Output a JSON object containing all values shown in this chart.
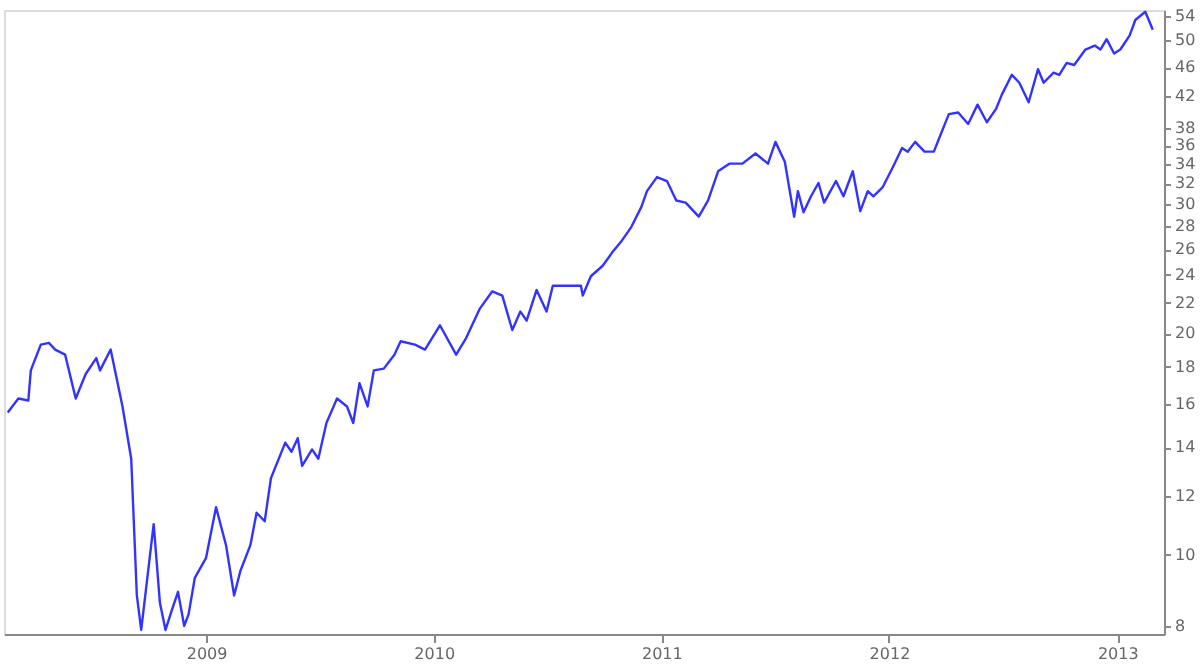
{
  "chart_data": {
    "type": "line",
    "log": "y",
    "grid": false,
    "marker": "none",
    "line_style": "solid",
    "xlim": [
      "2008-02-12",
      "2013-03-17"
    ],
    "xticks": [
      "2009",
      "2010",
      "2011",
      "2012",
      "2013"
    ],
    "ylim": [
      7.8,
      55
    ],
    "yticks": [
      8,
      10,
      12,
      14,
      16,
      18,
      20,
      22,
      24,
      26,
      28,
      30,
      32,
      34,
      36,
      38,
      42,
      46,
      50,
      54
    ],
    "series": [
      {
        "color": "#3333ff",
        "x": [
          "2008-02-18",
          "2008-03-06",
          "2008-03-22",
          "2008-03-26",
          "2008-04-11",
          "2008-04-24",
          "2008-05-04",
          "2008-05-20",
          "2008-06-06",
          "2008-06-22",
          "2008-07-09",
          "2008-07-15",
          "2008-08-01",
          "2008-08-11",
          "2008-08-20",
          "2008-09-03",
          "2008-09-12",
          "2008-09-19",
          "2008-09-22",
          "2008-10-05",
          "2008-10-09",
          "2008-10-19",
          "2008-10-28",
          "2008-11-07",
          "2008-11-17",
          "2008-11-27",
          "2008-12-04",
          "2008-12-14",
          "2009-01-01",
          "2009-01-17",
          "2009-02-02",
          "2009-02-15",
          "2009-02-25",
          "2009-03-13",
          "2009-03-23",
          "2009-04-05",
          "2009-04-15",
          "2009-05-08",
          "2009-05-18",
          "2009-05-28",
          "2009-06-04",
          "2009-06-20",
          "2009-06-30",
          "2009-07-13",
          "2009-07-30",
          "2009-08-15",
          "2009-08-25",
          "2009-09-04",
          "2009-09-17",
          "2009-09-27",
          "2009-10-13",
          "2009-10-30",
          "2009-11-09",
          "2009-12-02",
          "2009-12-18",
          "2010-01-11",
          "2010-02-06",
          "2010-02-22",
          "2010-03-16",
          "2010-04-05",
          "2010-04-21",
          "2010-05-07",
          "2010-05-20",
          "2010-05-30",
          "2010-06-15",
          "2010-07-01",
          "2010-07-11",
          "2010-08-09",
          "2010-08-25",
          "2010-08-28",
          "2010-09-10",
          "2010-09-29",
          "2010-10-15",
          "2010-10-28",
          "2010-11-14",
          "2010-11-30",
          "2010-12-09",
          "2010-12-25",
          "2011-01-10",
          "2011-01-25",
          "2011-02-09",
          "2011-03-02",
          "2011-03-17",
          "2011-04-02",
          "2011-04-20",
          "2011-05-11",
          "2011-06-01",
          "2011-06-21",
          "2011-07-03",
          "2011-07-18",
          "2011-08-02",
          "2011-08-08",
          "2011-08-17",
          "2011-08-29",
          "2011-09-10",
          "2011-09-19",
          "2011-10-08",
          "2011-10-20",
          "2011-11-04",
          "2011-11-16",
          "2011-11-28",
          "2011-12-07",
          "2011-12-22",
          "2012-01-07",
          "2012-01-22",
          "2012-01-31",
          "2012-02-12",
          "2012-02-27",
          "2012-03-13",
          "2012-03-22",
          "2012-04-06",
          "2012-04-21",
          "2012-05-07",
          "2012-05-22",
          "2012-06-06",
          "2012-06-21",
          "2012-06-30",
          "2012-07-16",
          "2012-07-28",
          "2012-08-12",
          "2012-08-27",
          "2012-09-05",
          "2012-09-21",
          "2012-09-30",
          "2012-10-12",
          "2012-10-24",
          "2012-11-11",
          "2012-11-26",
          "2012-12-05",
          "2012-12-15",
          "2012-12-27",
          "2013-01-06",
          "2013-01-21",
          "2013-01-30",
          "2013-02-15",
          "2013-02-27"
        ],
        "values": [
          15.6,
          16.3,
          16.2,
          17.8,
          19.3,
          19.4,
          19.0,
          18.7,
          16.3,
          17.6,
          18.5,
          17.8,
          19.0,
          17.3,
          15.9,
          13.5,
          8.8,
          7.9,
          8.3,
          10.3,
          11.0,
          8.6,
          7.9,
          8.4,
          8.9,
          8.0,
          8.3,
          9.3,
          9.9,
          11.6,
          10.3,
          8.8,
          9.5,
          10.3,
          11.4,
          11.1,
          12.7,
          14.2,
          13.8,
          14.4,
          13.2,
          13.9,
          13.5,
          15.1,
          16.3,
          15.9,
          15.1,
          17.1,
          15.9,
          17.8,
          17.9,
          18.7,
          19.5,
          19.3,
          19.0,
          20.5,
          18.7,
          19.7,
          21.6,
          22.8,
          22.5,
          20.2,
          21.4,
          20.8,
          22.9,
          21.4,
          23.2,
          23.2,
          23.2,
          22.5,
          23.9,
          24.7,
          25.8,
          26.6,
          27.9,
          29.7,
          31.2,
          32.6,
          32.2,
          30.3,
          30.1,
          28.8,
          30.3,
          33.2,
          34.0,
          34.0,
          35.1,
          34.0,
          36.4,
          34.2,
          28.8,
          31.2,
          29.2,
          30.7,
          32.0,
          30.1,
          32.2,
          30.7,
          33.2,
          29.3,
          31.2,
          30.7,
          31.6,
          33.6,
          35.7,
          35.3,
          36.4,
          35.3,
          35.3,
          36.9,
          39.7,
          39.9,
          38.5,
          40.9,
          38.7,
          40.4,
          42.2,
          44.9,
          43.8,
          41.2,
          45.7,
          43.8,
          45.2,
          44.9,
          46.6,
          46.3,
          48.6,
          49.2,
          48.6,
          50.2,
          48.0,
          48.6,
          50.8,
          53.3,
          54.7,
          51.7
        ]
      }
    ]
  }
}
